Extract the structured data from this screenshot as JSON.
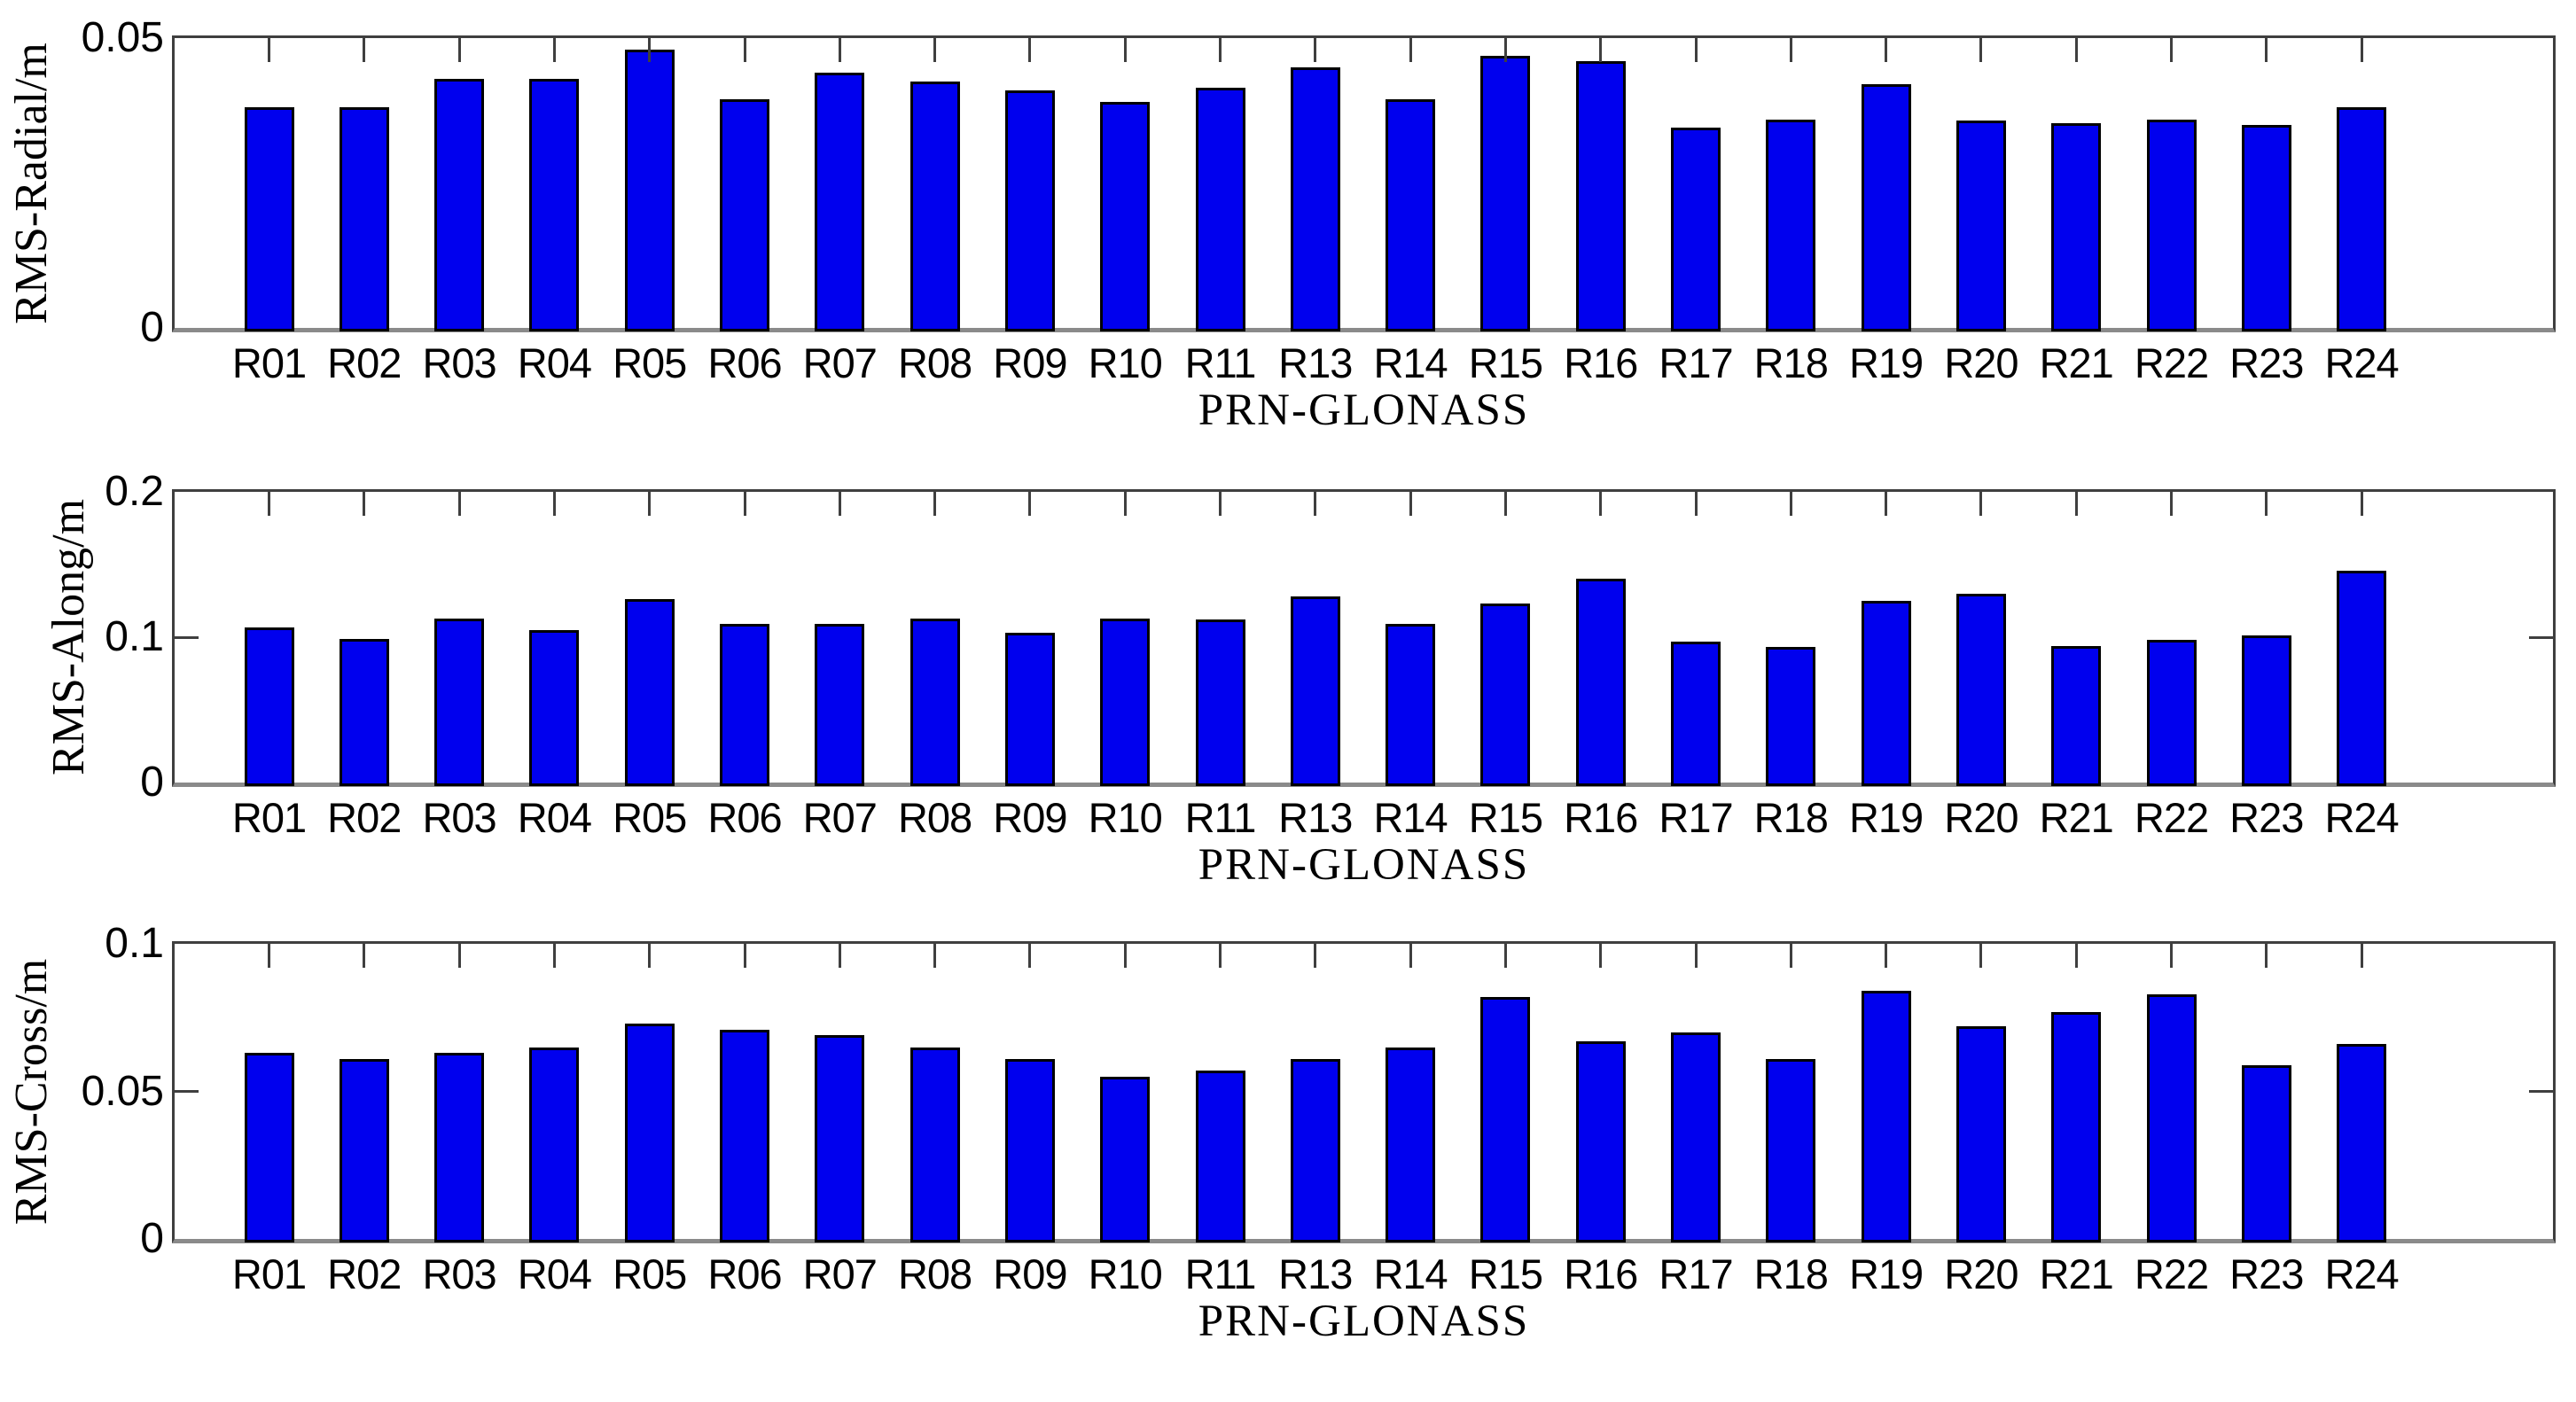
{
  "figure": {
    "background": "#ffffff",
    "description": "Three stacked bar charts of GLONASS satellite orbit RMS errors per PRN"
  },
  "colors": {
    "bar_fill": "#0000ee",
    "bar_edge": "#000000",
    "axis": "#3f3f3f",
    "baseline": "#8a8a8a",
    "text": "#000000"
  },
  "chart_data": [
    {
      "type": "bar",
      "title": "",
      "xlabel": "PRN-GLONASS",
      "ylabel": "RMS-Radial/m",
      "ylim": [
        0,
        0.05
      ],
      "grid": false,
      "legend": null,
      "yticks": [
        {
          "value": 0,
          "label": "0"
        },
        {
          "value": 0.05,
          "label": "0.05"
        }
      ],
      "categories": [
        "R01",
        "R02",
        "R03",
        "R04",
        "R05",
        "R06",
        "R07",
        "R08",
        "R09",
        "R10",
        "R11",
        "R13",
        "R14",
        "R15",
        "R16",
        "R17",
        "R18",
        "R19",
        "R20",
        "R21",
        "R22",
        "R23",
        "R24"
      ],
      "values": [
        0.038,
        0.038,
        0.043,
        0.043,
        0.048,
        0.0395,
        0.044,
        0.0425,
        0.041,
        0.039,
        0.0415,
        0.045,
        0.0395,
        0.047,
        0.046,
        0.0345,
        0.036,
        0.042,
        0.0358,
        0.0353,
        0.0359,
        0.035,
        0.038
      ]
    },
    {
      "type": "bar",
      "title": "",
      "xlabel": "PRN-GLONASS",
      "ylabel": "RMS-Along/m",
      "ylim": [
        0,
        0.2
      ],
      "grid": false,
      "legend": null,
      "yticks": [
        {
          "value": 0,
          "label": "0"
        },
        {
          "value": 0.1,
          "label": "0.1"
        },
        {
          "value": 0.2,
          "label": "0.2"
        }
      ],
      "categories": [
        "R01",
        "R02",
        "R03",
        "R04",
        "R05",
        "R06",
        "R07",
        "R08",
        "R09",
        "R10",
        "R11",
        "R13",
        "R14",
        "R15",
        "R16",
        "R17",
        "R18",
        "R19",
        "R20",
        "R21",
        "R22",
        "R23",
        "R24"
      ],
      "values": [
        0.107,
        0.099,
        0.113,
        0.105,
        0.126,
        0.109,
        0.109,
        0.113,
        0.103,
        0.113,
        0.112,
        0.128,
        0.109,
        0.123,
        0.14,
        0.097,
        0.093,
        0.125,
        0.13,
        0.094,
        0.098,
        0.101,
        0.146
      ]
    },
    {
      "type": "bar",
      "title": "",
      "xlabel": "PRN-GLONASS",
      "ylabel": "RMS-Cross/m",
      "ylim": [
        0,
        0.1
      ],
      "grid": false,
      "legend": null,
      "yticks": [
        {
          "value": 0,
          "label": "0"
        },
        {
          "value": 0.05,
          "label": "0.05"
        },
        {
          "value": 0.1,
          "label": "0.1"
        }
      ],
      "categories": [
        "R01",
        "R02",
        "R03",
        "R04",
        "R05",
        "R06",
        "R07",
        "R08",
        "R09",
        "R10",
        "R11",
        "R13",
        "R14",
        "R15",
        "R16",
        "R17",
        "R18",
        "R19",
        "R20",
        "R21",
        "R22",
        "R23",
        "R24"
      ],
      "values": [
        0.063,
        0.061,
        0.063,
        0.065,
        0.073,
        0.071,
        0.069,
        0.065,
        0.061,
        0.055,
        0.057,
        0.061,
        0.065,
        0.082,
        0.067,
        0.07,
        0.061,
        0.084,
        0.072,
        0.077,
        0.083,
        0.059,
        0.066
      ]
    }
  ]
}
